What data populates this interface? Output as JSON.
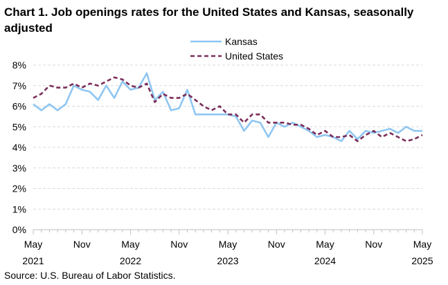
{
  "title": "Chart 1. Job openings rates for the United States and Kansas, seasonally adjusted",
  "source": "U.S. Bureau of Labor Statistics.",
  "chart_data": {
    "type": "line",
    "title": "Chart 1. Job openings rates for the United States and Kansas, seasonally adjusted",
    "xlabel": "",
    "ylabel": "",
    "ylim": [
      0,
      8
    ],
    "yticks": [
      "0%",
      "1%",
      "2%",
      "3%",
      "4%",
      "5%",
      "6%",
      "7%",
      "8%"
    ],
    "x_ticks": [
      {
        "month": "May",
        "year": "2021",
        "index": 0
      },
      {
        "month": "Nov",
        "year": "",
        "index": 6
      },
      {
        "month": "May",
        "year": "2022",
        "index": 12
      },
      {
        "month": "Nov",
        "year": "",
        "index": 18
      },
      {
        "month": "May",
        "year": "2023",
        "index": 24
      },
      {
        "month": "Nov",
        "year": "",
        "index": 30
      },
      {
        "month": "May",
        "year": "2024",
        "index": 36
      },
      {
        "month": "Nov",
        "year": "",
        "index": 42
      },
      {
        "month": "May",
        "year": "2025",
        "index": 48
      }
    ],
    "x_range": [
      "May 2021",
      "May 2025"
    ],
    "grid": true,
    "legend_position": "top-center",
    "series": [
      {
        "name": "Kansas",
        "color": "#8fc6f2",
        "style": "solid",
        "values": [
          6.1,
          5.8,
          6.1,
          5.8,
          6.1,
          7.0,
          6.8,
          6.7,
          6.3,
          7.0,
          6.4,
          7.2,
          6.8,
          6.9,
          7.6,
          6.3,
          6.7,
          5.8,
          5.9,
          6.8,
          5.6,
          5.6,
          5.6,
          5.6,
          5.6,
          5.5,
          4.8,
          5.3,
          5.2,
          4.5,
          5.2,
          5.0,
          5.2,
          5.0,
          4.8,
          4.5,
          4.6,
          4.5,
          4.3,
          4.8,
          4.4,
          4.8,
          4.7,
          4.8,
          4.9,
          4.7,
          5.0,
          4.8,
          4.8
        ]
      },
      {
        "name": "United States",
        "color": "#7b2d5a",
        "style": "dashed",
        "values": [
          6.4,
          6.6,
          7.0,
          6.9,
          6.9,
          7.1,
          6.9,
          7.1,
          7.0,
          7.2,
          7.4,
          7.3,
          7.0,
          6.9,
          7.1,
          6.2,
          6.6,
          6.4,
          6.4,
          6.6,
          6.3,
          6.0,
          5.8,
          6.0,
          5.6,
          5.6,
          5.2,
          5.6,
          5.6,
          5.2,
          5.2,
          5.2,
          5.1,
          5.1,
          4.9,
          4.6,
          4.8,
          4.5,
          4.5,
          4.6,
          4.3,
          4.6,
          4.8,
          4.5,
          4.7,
          4.5,
          4.3,
          4.4,
          4.6
        ]
      }
    ]
  }
}
